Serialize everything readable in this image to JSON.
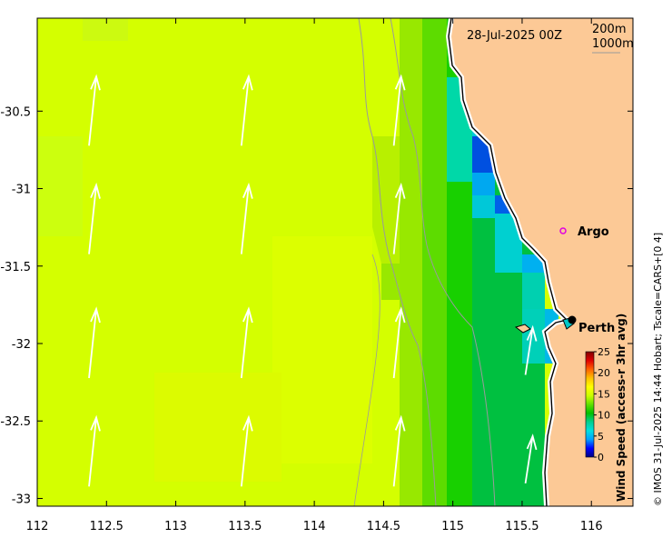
{
  "map": {
    "date_label": "28-Jul-2025 00Z",
    "contour_labels": [
      "200m",
      "1000m"
    ],
    "colors": {
      "land": "#fcc996",
      "bathymetry_contour": "#9a9a9a",
      "coast": "#000000",
      "arrow": "#ffffff",
      "argo_marker": "#e000e0"
    },
    "x_ticks": [
      "112",
      "112.5",
      "113",
      "113.5",
      "114",
      "114.5",
      "115",
      "115.5",
      "116"
    ],
    "y_ticks": [
      "-30.5",
      "-31",
      "-31.5",
      "-32",
      "-32.5",
      "-33"
    ],
    "places": [
      {
        "name": "Argo",
        "lon": 115.85,
        "lat": -31.41,
        "marker": "circle"
      },
      {
        "name": "Perth",
        "lon": 115.86,
        "lat": -31.95,
        "marker": "dot"
      }
    ],
    "wind_arrows": [
      {
        "lon": 112.4,
        "lat": -30.5
      },
      {
        "lon": 113.5,
        "lat": -30.5
      },
      {
        "lon": 114.6,
        "lat": -30.5
      },
      {
        "lon": 112.4,
        "lat": -31.2
      },
      {
        "lon": 113.5,
        "lat": -31.2
      },
      {
        "lon": 114.6,
        "lat": -31.2
      },
      {
        "lon": 112.4,
        "lat": -32.0
      },
      {
        "lon": 113.5,
        "lat": -32.0
      },
      {
        "lon": 114.6,
        "lat": -32.0
      },
      {
        "lon": 115.55,
        "lat": -32.05
      },
      {
        "lon": 112.4,
        "lat": -32.7
      },
      {
        "lon": 113.5,
        "lat": -32.7
      },
      {
        "lon": 114.6,
        "lat": -32.7
      },
      {
        "lon": 115.55,
        "lat": -32.75
      }
    ],
    "colorbar": {
      "label": "Wind Speed (access-r 3hr avg)",
      "ticks": [
        "0",
        "5",
        "10",
        "15",
        "20",
        "25"
      ],
      "min": 0,
      "max": 25,
      "gradient": [
        "#00007f",
        "#0000ff",
        "#00a0ff",
        "#00e0e0",
        "#00d090",
        "#00c000",
        "#60e000",
        "#ccff00",
        "#ffff00",
        "#ffc000",
        "#ff6000",
        "#e00000",
        "#800000"
      ]
    },
    "credit": "© IMOS 31-Jul-2025 14:44 Hobart; Tscale=CARS+[0 4]"
  }
}
